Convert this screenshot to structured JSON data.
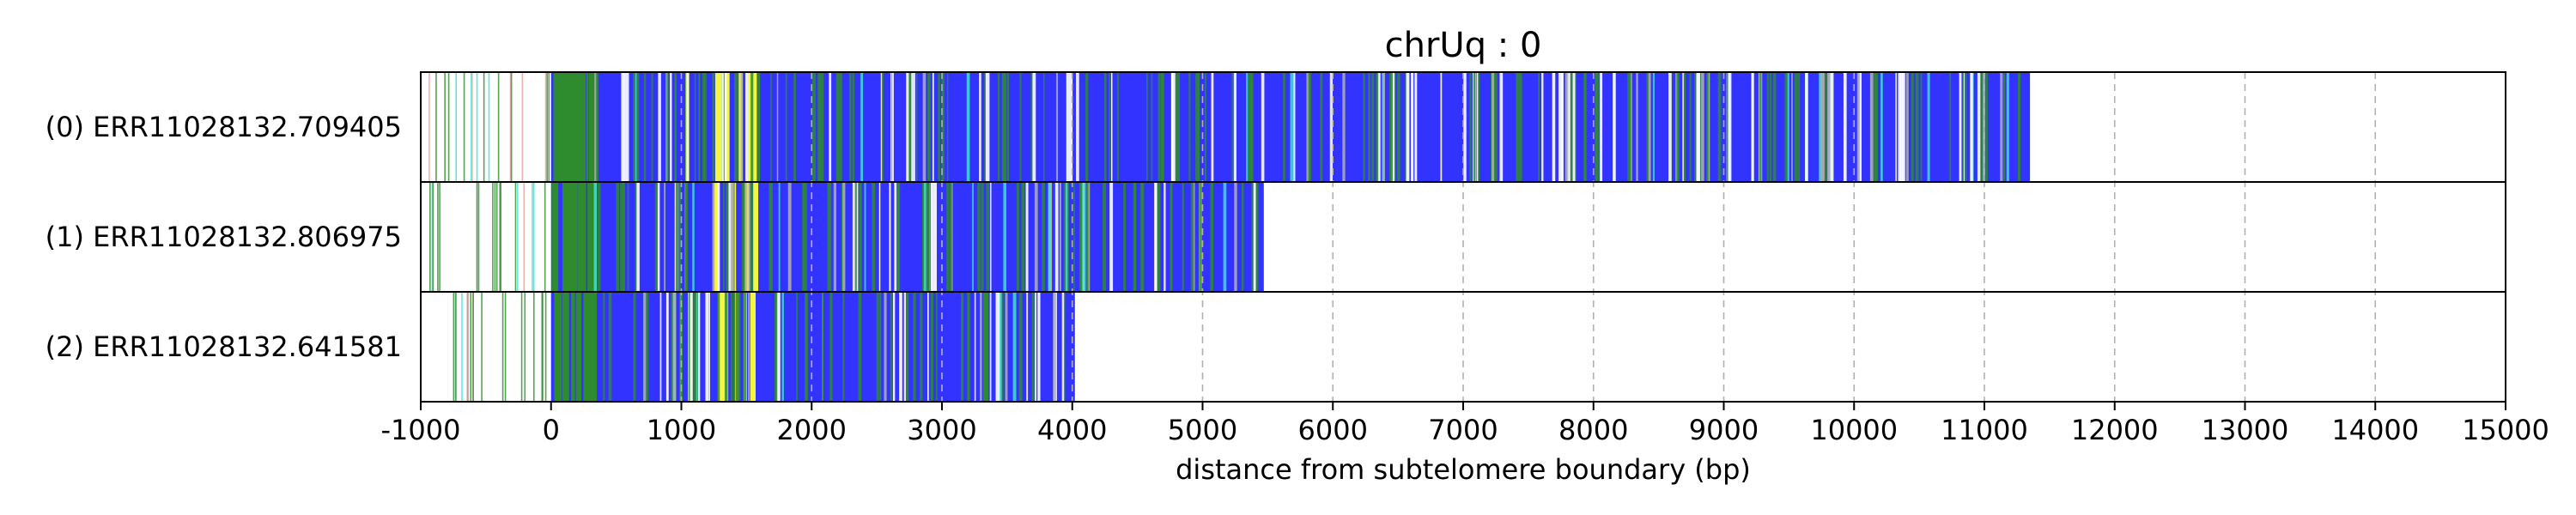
{
  "chart_data": {
    "type": "bar",
    "title": "chrUq : 0",
    "xlabel": "distance from subtelomere boundary (bp)",
    "ylabel": "",
    "xlim": [
      -1000,
      15000
    ],
    "xticks": [
      "-1000",
      "0",
      "1000",
      "2000",
      "3000",
      "4000",
      "5000",
      "6000",
      "7000",
      "8000",
      "9000",
      "10000",
      "11000",
      "12000",
      "13000",
      "14000",
      "15000"
    ],
    "grid": "vertical dashed",
    "colors": {
      "blue": "#3333ff",
      "green": "#2e8b2e",
      "yellow": "#f4f442",
      "cyan": "#40e0d0",
      "grey": "#b0b0b0",
      "pink": "#e8a0a0",
      "white": "#ffffff"
    },
    "series": [
      {
        "label": "(0) ERR11028132.709405",
        "read_end": 11350
      },
      {
        "label": "(1) ERR11028132.806975",
        "read_end": 5470
      },
      {
        "label": "(2) ERR11028132.641581",
        "read_end": 4020
      }
    ]
  }
}
